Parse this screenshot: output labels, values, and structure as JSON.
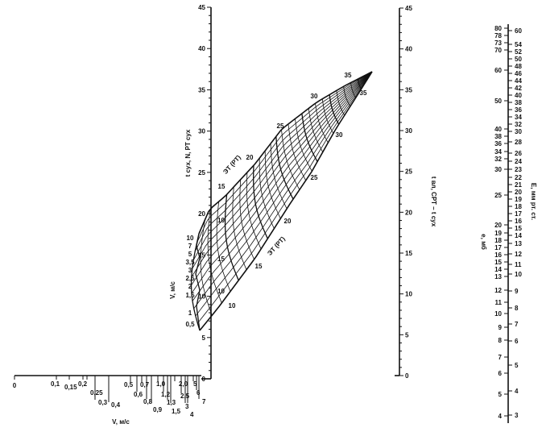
{
  "axes": {
    "left": {
      "label": "t сух, N, РТ сух",
      "ticks": [
        "0",
        "5",
        "10",
        "15",
        "20",
        "25",
        "30",
        "35",
        "40",
        "45"
      ]
    },
    "middle": {
      "label": "t вл, СРТ – t сух",
      "ticks": [
        "0",
        "5",
        "10",
        "15",
        "20",
        "25",
        "30",
        "35",
        "40",
        "45"
      ]
    },
    "bottom": {
      "label": "V, м/с",
      "ticks": [
        "0",
        "0,1",
        "0,15",
        "0,2",
        "0,25",
        "0,3",
        "0,4",
        "0,5",
        "0,6",
        "0,7",
        "0,8",
        "0,9",
        "1,0",
        "1,2",
        "1,3",
        "1,5",
        "2,0",
        "2,5",
        "3",
        "4",
        "5",
        "6",
        "7"
      ]
    },
    "right_e": {
      "label": "e, мб",
      "ticks": [
        "80",
        "78",
        "73",
        "70",
        "60",
        "50",
        "40",
        "38",
        "36",
        "34",
        "32",
        "30",
        "25",
        "20",
        "19",
        "18",
        "17",
        "16",
        "15",
        "14",
        "13",
        "12",
        "11",
        "10",
        "9",
        "8",
        "7",
        "6",
        "5",
        "4"
      ]
    },
    "right_E": {
      "label": "E, мм рт. ст.",
      "ticks": [
        "60",
        "54",
        "52",
        "50",
        "48",
        "46",
        "44",
        "42",
        "40",
        "38",
        "36",
        "34",
        "32",
        "30",
        "28",
        "26",
        "24",
        "23",
        "22",
        "21",
        "20",
        "19",
        "18",
        "17",
        "16",
        "15",
        "14",
        "13",
        "12",
        "11",
        "10",
        "9",
        "8",
        "7",
        "6",
        "5",
        "4",
        "3"
      ]
    }
  },
  "grid": {
    "label_upper": "ЭТ (РТ)",
    "label_lower": "ЭТ (РТ)",
    "upper_edge_values": [
      "15",
      "20",
      "25",
      "30",
      "35"
    ],
    "lower_edge_values": [
      "10",
      "15",
      "20",
      "25",
      "30",
      "35"
    ],
    "left_values": [
      "10",
      "15",
      "10"
    ],
    "v_label": "V, м/с",
    "v_values": [
      "10",
      "7",
      "5",
      "3,5",
      "3",
      "2,5",
      "2",
      "1,5",
      "1",
      "0,5"
    ]
  },
  "colors": {
    "ink": "#111111",
    "background": "#ffffff"
  }
}
